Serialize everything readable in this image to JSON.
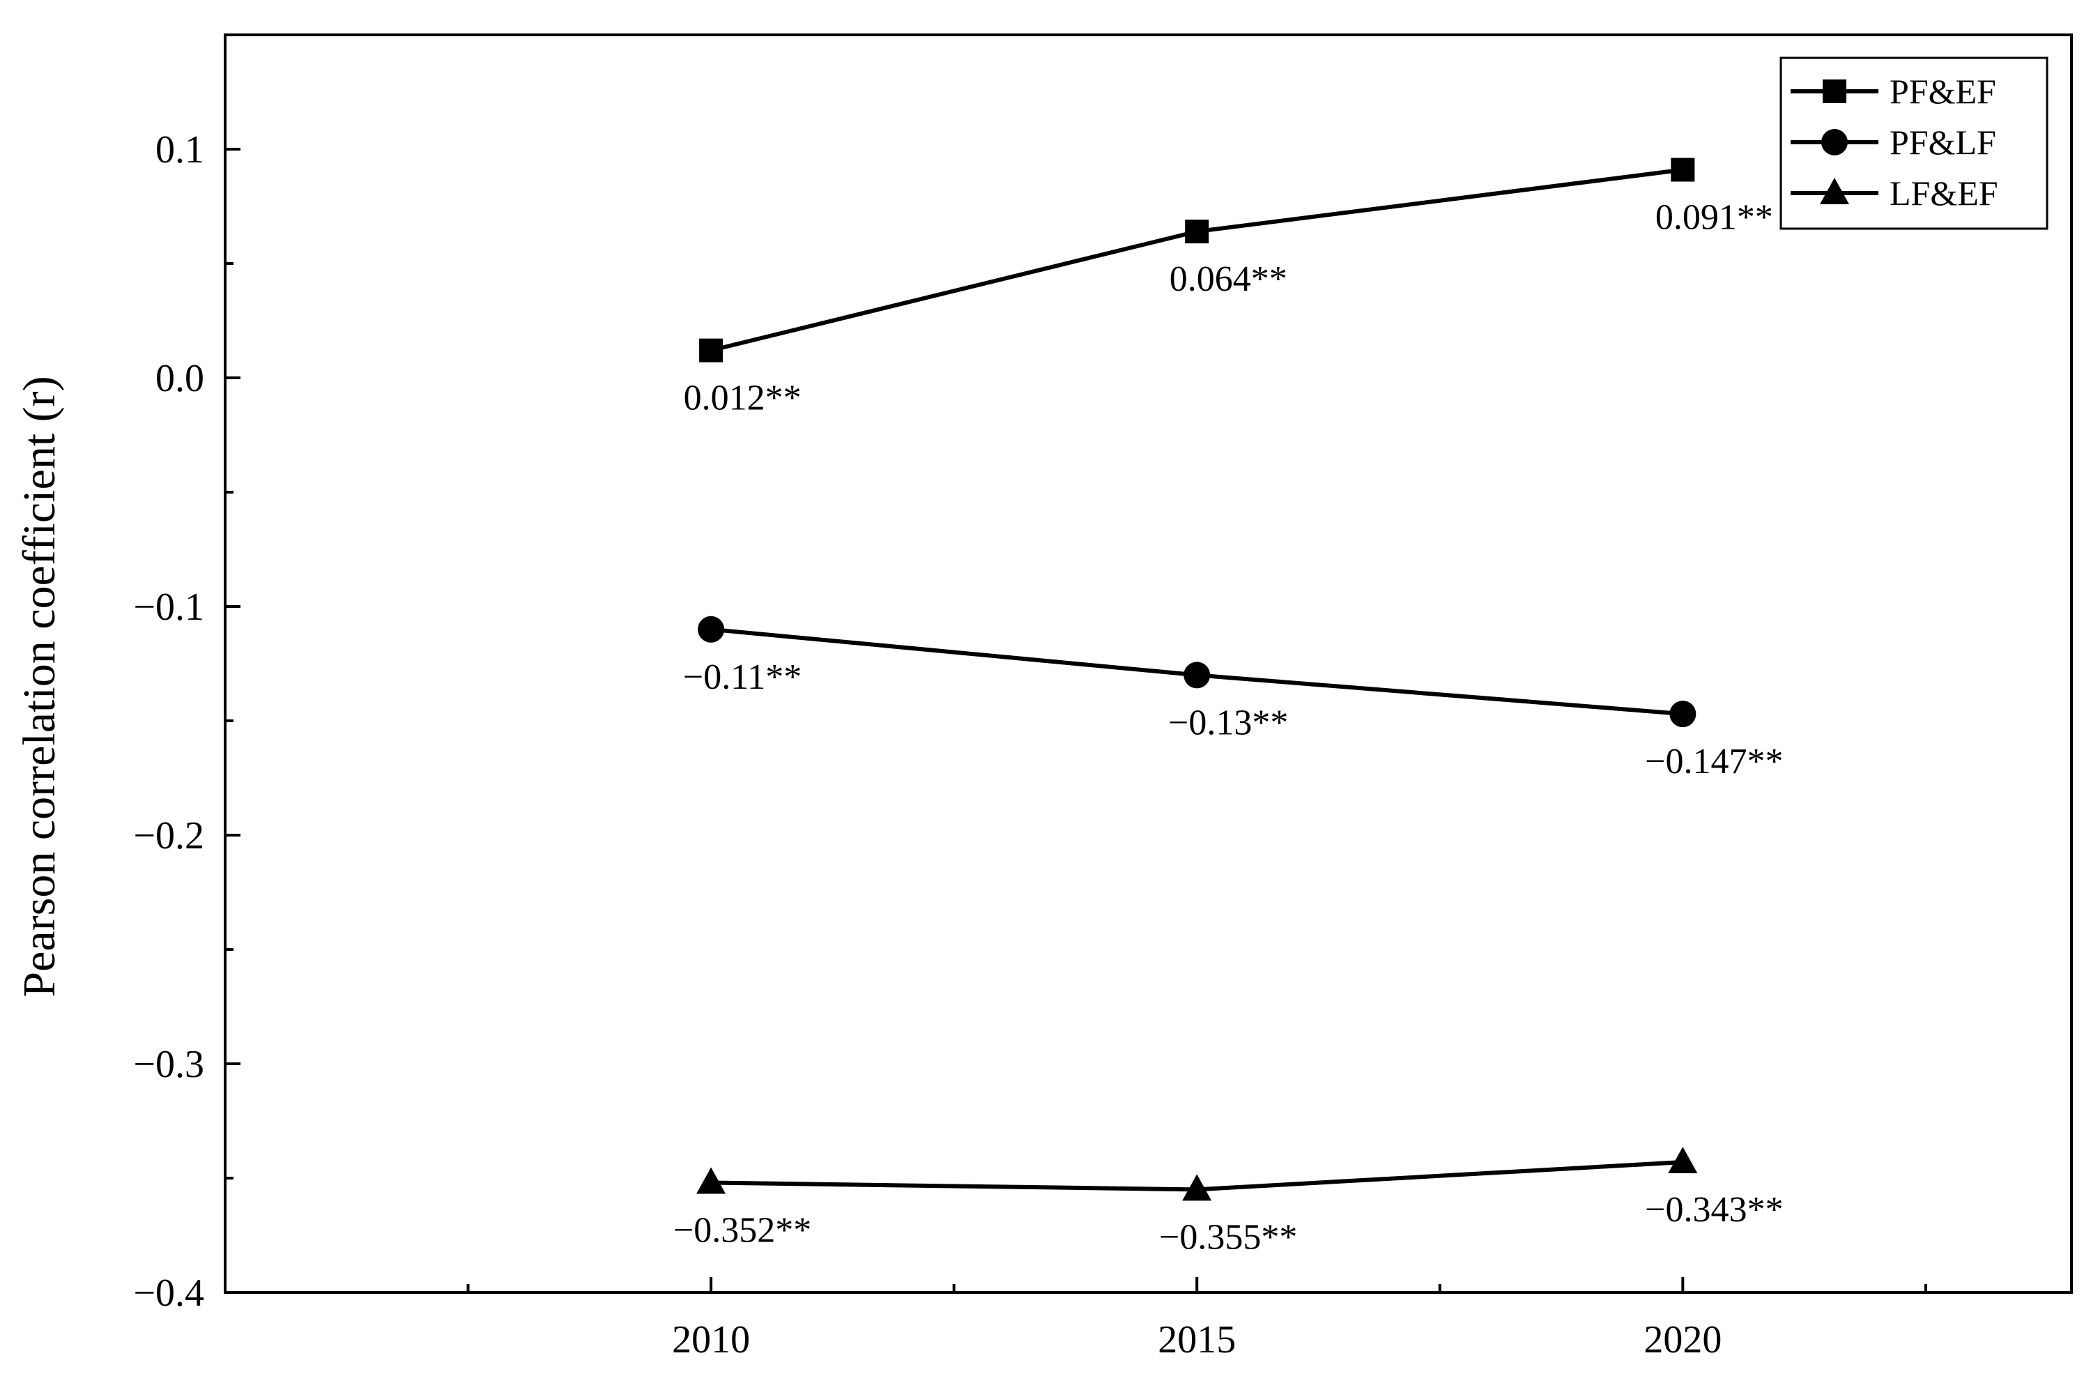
{
  "chart_data": {
    "type": "line",
    "title": "",
    "xlabel": "",
    "ylabel": "Pearson correlation coefficient (r)",
    "x": [
      2010,
      2015,
      2020
    ],
    "x_tick_labels": [
      "2010",
      "2015",
      "2020"
    ],
    "xlim": [
      2005,
      2024
    ],
    "ylim": [
      -0.4,
      0.15
    ],
    "y_ticks": [
      0.1,
      0.0,
      -0.1,
      -0.2,
      -0.3,
      -0.4
    ],
    "y_tick_labels": [
      "0.1",
      "0.0",
      "−0.1",
      "−0.2",
      "−0.3",
      "−0.4"
    ],
    "grid": false,
    "legend_position": "top-right",
    "series": [
      {
        "name": "PF&EF",
        "marker": "square",
        "color": "#000000",
        "values": [
          0.012,
          0.064,
          0.091
        ],
        "labels": [
          "0.012**",
          "0.064**",
          "0.091**"
        ]
      },
      {
        "name": "PF&LF",
        "marker": "circle",
        "color": "#000000",
        "values": [
          -0.11,
          -0.13,
          -0.147
        ],
        "labels": [
          "−0.11**",
          "−0.13**",
          "−0.147**"
        ]
      },
      {
        "name": "LF&EF",
        "marker": "triangle",
        "color": "#000000",
        "values": [
          -0.352,
          -0.355,
          -0.343
        ],
        "labels": [
          "−0.352**",
          "−0.355**",
          "−0.343**"
        ]
      }
    ]
  }
}
